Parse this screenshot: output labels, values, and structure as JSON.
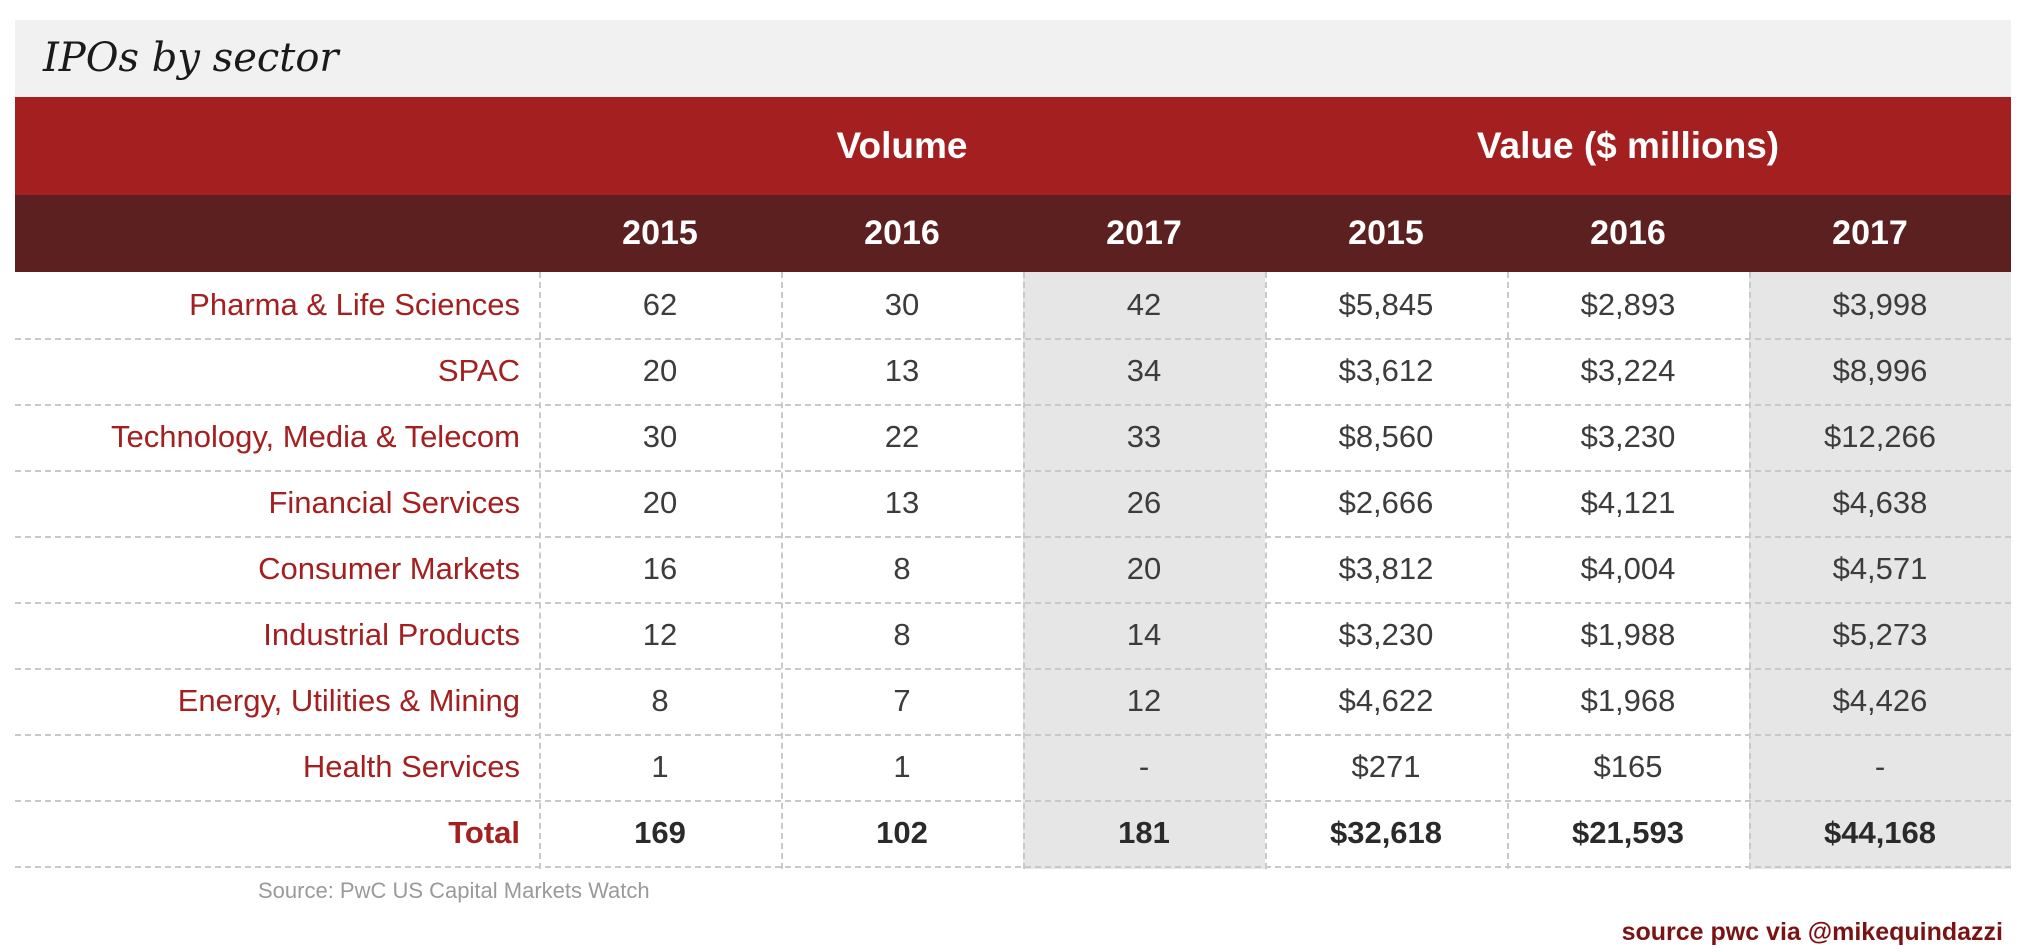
{
  "chart_data": {
    "type": "table",
    "title": "IPOs by sector",
    "groups": [
      {
        "label": "Volume",
        "years": [
          "2015",
          "2016",
          "2017"
        ]
      },
      {
        "label": "Value ($ millions)",
        "years": [
          "2015",
          "2016",
          "2017"
        ]
      }
    ],
    "rows": [
      {
        "sector": "Pharma & Life Sciences",
        "volume": [
          "62",
          "30",
          "42"
        ],
        "value": [
          "$5,845",
          "$2,893",
          "$3,998"
        ]
      },
      {
        "sector": "SPAC",
        "volume": [
          "20",
          "13",
          "34"
        ],
        "value": [
          "$3,612",
          "$3,224",
          "$8,996"
        ]
      },
      {
        "sector": "Technology, Media & Telecom",
        "volume": [
          "30",
          "22",
          "33"
        ],
        "value": [
          "$8,560",
          "$3,230",
          "$12,266"
        ]
      },
      {
        "sector": "Financial Services",
        "volume": [
          "20",
          "13",
          "26"
        ],
        "value": [
          "$2,666",
          "$4,121",
          "$4,638"
        ]
      },
      {
        "sector": "Consumer Markets",
        "volume": [
          "16",
          "8",
          "20"
        ],
        "value": [
          "$3,812",
          "$4,004",
          "$4,571"
        ]
      },
      {
        "sector": "Industrial Products",
        "volume": [
          "12",
          "8",
          "14"
        ],
        "value": [
          "$3,230",
          "$1,988",
          "$5,273"
        ]
      },
      {
        "sector": "Energy, Utilities & Mining",
        "volume": [
          "8",
          "7",
          "12"
        ],
        "value": [
          "$4,622",
          "$1,968",
          "$4,426"
        ]
      },
      {
        "sector": "Health Services",
        "volume": [
          "1",
          "1",
          "-"
        ],
        "value": [
          "$271",
          "$165",
          "-"
        ]
      }
    ],
    "total": {
      "sector": "Total",
      "volume": [
        "169",
        "102",
        "181"
      ],
      "value": [
        "$32,618",
        "$21,593",
        "$44,168"
      ]
    },
    "source": "Source: PwC US Capital Markets Watch"
  },
  "credit": "source pwc via @mikequindazzi",
  "colors": {
    "header_red": "#a31f20",
    "header_dark": "#5c2020",
    "sector_text": "#a31f20",
    "shaded_column": "#e6e6e6"
  }
}
